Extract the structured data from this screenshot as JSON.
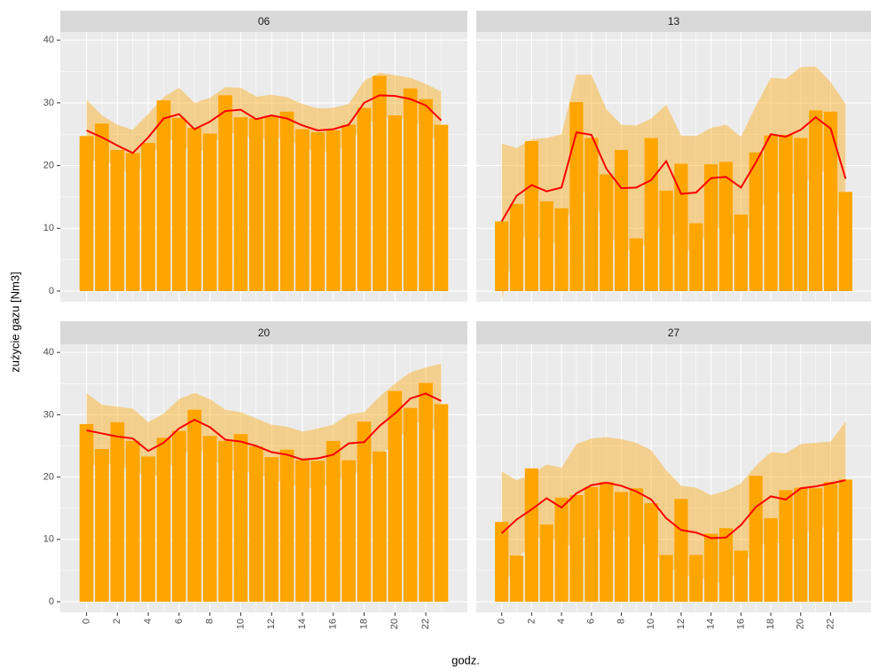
{
  "axes": {
    "y_label": "zużycie gazu [Nm3]",
    "x_label": "godz."
  },
  "chart_data": [
    {
      "type": "bar",
      "title": "06",
      "x": [
        0,
        1,
        2,
        3,
        4,
        5,
        6,
        7,
        8,
        9,
        10,
        11,
        12,
        13,
        14,
        15,
        16,
        17,
        18,
        19,
        20,
        21,
        22,
        23
      ],
      "values": [
        24.7,
        26.7,
        22.5,
        22,
        23.6,
        30.4,
        27.6,
        26,
        25.1,
        31.2,
        27.7,
        27.5,
        27.9,
        28.6,
        25.8,
        25.3,
        25.6,
        26.5,
        29.2,
        34.3,
        28,
        32.3,
        30.6,
        26.5
      ],
      "smooth": [
        25.6,
        24.5,
        23.2,
        22,
        24.5,
        27.5,
        28.2,
        25.8,
        27,
        28.7,
        28.9,
        27.4,
        28,
        27.5,
        26.4,
        25.6,
        25.8,
        26.5,
        30,
        31.2,
        31.1,
        30.6,
        29.6,
        27.2
      ],
      "ci_upper": [
        30.5,
        28,
        26.5,
        25.7,
        28.2,
        30.9,
        32.4,
        30,
        30.8,
        32.5,
        32.4,
        31,
        31.3,
        30.9,
        29.8,
        29.1,
        29.2,
        29.8,
        33.5,
        34.8,
        34.4,
        34,
        33,
        31.8
      ],
      "ci_lower": [
        20.7,
        21,
        19.9,
        18.3,
        20.8,
        24.1,
        24,
        21.6,
        23.2,
        24.9,
        25.4,
        23.8,
        24.7,
        24.1,
        23,
        22.1,
        22.4,
        23.2,
        26.5,
        27.6,
        27.8,
        27.2,
        26.2,
        22.6
      ],
      "color": "#FFA500",
      "smooth_color": "#FF0000",
      "ribbon_color": "#FFA500",
      "ribbon_alpha": 0.4,
      "xlim": [
        -1.7,
        24.7
      ],
      "ylim": [
        -1.7,
        41.3
      ],
      "xticks": [
        0,
        2,
        4,
        6,
        8,
        10,
        12,
        14,
        16,
        18,
        20,
        22
      ],
      "yticks": [
        0,
        10,
        20,
        30,
        40
      ],
      "grid": true
    },
    {
      "type": "bar",
      "title": "13",
      "x": [
        0,
        1,
        2,
        3,
        4,
        5,
        6,
        7,
        8,
        9,
        10,
        11,
        12,
        13,
        14,
        15,
        16,
        17,
        18,
        19,
        20,
        21,
        22,
        23
      ],
      "values": [
        11.1,
        13.9,
        23.9,
        14.3,
        13.2,
        30.1,
        24.4,
        18.6,
        22.5,
        8.4,
        24.4,
        16,
        20.3,
        10.8,
        20.2,
        20.6,
        12.2,
        22.1,
        24.8,
        24.9,
        24.4,
        28.8,
        28.6,
        15.8
      ],
      "smooth": [
        11.1,
        15.2,
        16.9,
        15.9,
        16.5,
        25.3,
        24.9,
        19.5,
        16.4,
        16.5,
        17.7,
        20.7,
        15.5,
        15.7,
        18,
        18.2,
        16.5,
        20.5,
        25,
        24.6,
        25.7,
        27.7,
        25.9,
        17.9
      ],
      "ci_upper": [
        23.5,
        22.8,
        24.2,
        24.4,
        25,
        34.5,
        34.5,
        29,
        26.5,
        26.4,
        27.5,
        29.7,
        24.8,
        24.7,
        26,
        26.5,
        24.6,
        29.5,
        34,
        33.8,
        35.7,
        35.8,
        33.3,
        29.8
      ],
      "ci_lower": [
        -1.3,
        7.6,
        9.6,
        7.4,
        8,
        16.1,
        15.3,
        10,
        6.3,
        6.6,
        7.9,
        11.7,
        6.2,
        6.7,
        10,
        9.9,
        8.4,
        11.5,
        16,
        15.4,
        15.7,
        19.6,
        18.5,
        6
      ],
      "color": "#FFA500",
      "smooth_color": "#FF0000",
      "ribbon_color": "#FFA500",
      "ribbon_alpha": 0.4,
      "xlim": [
        -1.7,
        24.7
      ],
      "ylim": [
        -1.7,
        41.3
      ],
      "xticks": [
        0,
        2,
        4,
        6,
        8,
        10,
        12,
        14,
        16,
        18,
        20,
        22
      ],
      "yticks": [
        0,
        10,
        20,
        30,
        40
      ],
      "grid": true
    },
    {
      "type": "bar",
      "title": "20",
      "x": [
        0,
        1,
        2,
        3,
        4,
        5,
        6,
        7,
        8,
        9,
        10,
        11,
        12,
        13,
        14,
        15,
        16,
        17,
        18,
        19,
        20,
        21,
        22,
        23
      ],
      "values": [
        28.5,
        24.5,
        28.8,
        25.8,
        23.3,
        26.3,
        27.4,
        30.8,
        26.6,
        25.8,
        26.9,
        24.9,
        23.2,
        24.4,
        22.7,
        22.6,
        25.8,
        22.7,
        28.9,
        24.1,
        33.8,
        31.1,
        35.1,
        31.7
      ],
      "smooth": [
        27.5,
        27,
        26.5,
        26.2,
        24.2,
        25.5,
        27.8,
        29.2,
        28,
        26,
        25.7,
        25,
        24,
        23.6,
        22.8,
        23,
        23.6,
        25.4,
        25.6,
        28.2,
        30.2,
        32.6,
        33.4,
        32.2
      ],
      "ci_upper": [
        33.5,
        31.6,
        31.3,
        31,
        28.8,
        30.2,
        32.5,
        33.5,
        32.5,
        30.8,
        30.4,
        29.4,
        28.4,
        28.1,
        27.3,
        27.8,
        28.4,
        30.1,
        30.4,
        32.9,
        35,
        36.8,
        37.6,
        38.2
      ],
      "ci_lower": [
        21.5,
        22.4,
        21.7,
        21.4,
        19.6,
        20.8,
        23.1,
        24.9,
        23.5,
        21.2,
        21,
        20.6,
        19.6,
        19.1,
        18.3,
        18.2,
        18.8,
        20.7,
        20.8,
        23.5,
        25.4,
        28.4,
        29.2,
        26.2
      ],
      "color": "#FFA500",
      "smooth_color": "#FF0000",
      "ribbon_color": "#FFA500",
      "ribbon_alpha": 0.4,
      "xlim": [
        -1.7,
        24.7
      ],
      "ylim": [
        -1.7,
        41.3
      ],
      "xticks": [
        0,
        2,
        4,
        6,
        8,
        10,
        12,
        14,
        16,
        18,
        20,
        22
      ],
      "yticks": [
        0,
        10,
        20,
        30,
        40
      ],
      "grid": true
    },
    {
      "type": "bar",
      "title": "27",
      "x": [
        0,
        1,
        2,
        3,
        4,
        5,
        6,
        7,
        8,
        9,
        10,
        11,
        12,
        13,
        14,
        15,
        16,
        17,
        18,
        19,
        20,
        21,
        22,
        23
      ],
      "values": [
        12.8,
        7.4,
        21.4,
        12.4,
        16.7,
        17.1,
        18.4,
        19.2,
        17.6,
        18.2,
        15.8,
        7.5,
        16.5,
        7.5,
        10.9,
        11.8,
        8.2,
        20.2,
        13.4,
        17.9,
        18.3,
        18.2,
        19.2,
        19.6
      ],
      "smooth": [
        11,
        13.2,
        14.8,
        16.6,
        15.1,
        17.4,
        18.7,
        19.1,
        18.6,
        17.7,
        16.4,
        13.4,
        11.5,
        11.1,
        10.2,
        10.3,
        12.3,
        15.2,
        16.9,
        16.4,
        18.2,
        18.5,
        19,
        19.5
      ],
      "ci_upper": [
        20.9,
        19.5,
        20.5,
        22,
        21.5,
        25.3,
        26.2,
        26.4,
        26.1,
        25.5,
        24.3,
        21.1,
        18.6,
        18.3,
        17.1,
        17.8,
        19,
        21.8,
        24,
        23.8,
        25.3,
        25.5,
        25.7,
        28.9
      ],
      "ci_lower": [
        1.1,
        6.9,
        9.1,
        11.2,
        8.7,
        9.5,
        11.2,
        11.8,
        11.1,
        9.9,
        8.5,
        5.7,
        4.4,
        3.9,
        3.3,
        2.8,
        5.6,
        8.6,
        9.8,
        9,
        11.1,
        11.5,
        12.3,
        10.1
      ],
      "color": "#FFA500",
      "smooth_color": "#FF0000",
      "ribbon_color": "#FFA500",
      "ribbon_alpha": 0.4,
      "xlim": [
        -1.7,
        24.7
      ],
      "ylim": [
        -1.7,
        41.3
      ],
      "xticks": [
        0,
        2,
        4,
        6,
        8,
        10,
        12,
        14,
        16,
        18,
        20,
        22
      ],
      "yticks": [
        0,
        10,
        20,
        30,
        40
      ],
      "grid": true
    }
  ]
}
